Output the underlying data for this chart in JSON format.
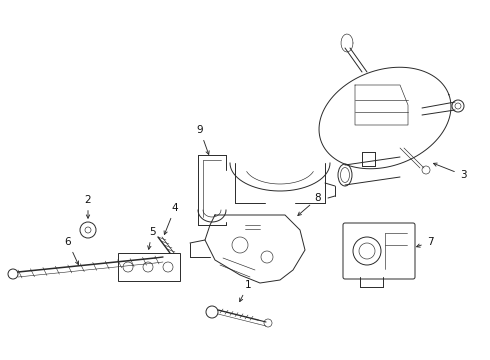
{
  "bg_color": "#ffffff",
  "line_color": "#2a2a2a",
  "label_color": "#111111",
  "fig_width": 4.9,
  "fig_height": 3.6,
  "dpi": 100
}
